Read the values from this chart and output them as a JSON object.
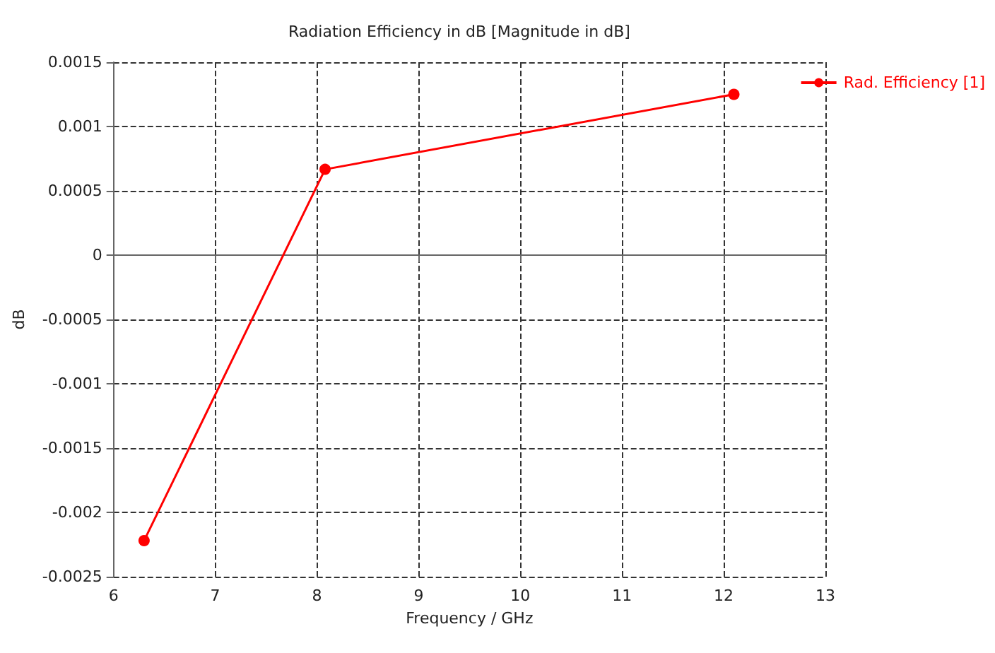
{
  "chart_data": {
    "type": "line",
    "title": "Radiation Efficiency in dB [Magnitude in dB]",
    "xlabel": "Frequency / GHz",
    "ylabel": "dB",
    "x": [
      6.3,
      8.08,
      12.1
    ],
    "series": [
      {
        "name": "Rad. Efficiency [1]",
        "color": "#ff0000",
        "values": [
          -0.00222,
          0.000667,
          0.00125
        ]
      }
    ],
    "xlim": [
      6,
      13
    ],
    "xticks": [
      6,
      7,
      8,
      9,
      10,
      11,
      12,
      13
    ],
    "ylim": [
      -0.0025,
      0.0015
    ],
    "yticks": [
      -0.0025,
      -0.002,
      -0.0015,
      -0.001,
      -0.0005,
      0,
      0.0005,
      0.001,
      0.0015
    ],
    "grid": true,
    "legend": "top right",
    "marker": "circle",
    "line_style": "solid"
  }
}
